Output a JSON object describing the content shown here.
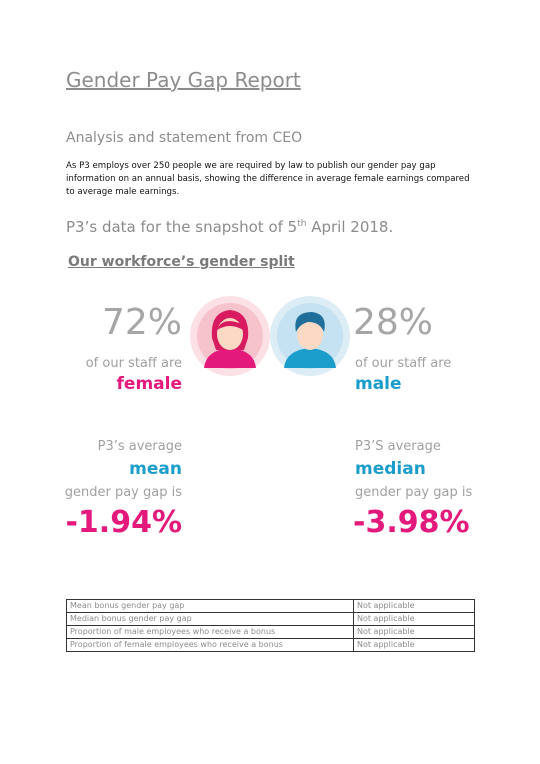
{
  "header": {
    "title": "Gender Pay Gap Report",
    "subtitle": "Analysis and statement from CEO"
  },
  "intro": "As P3 employs over 250 people we are required by law to publish our gender pay gap information on an annual basis, showing the difference in average female earnings compared to average male earnings.",
  "snapshot": {
    "before": "P3’s data for the snapshot of 5",
    "sup": "th",
    "after": " April 2018."
  },
  "section_title": "Our workforce’s gender split",
  "female": {
    "percent": "72%",
    "line": "of our staff are",
    "label": "female"
  },
  "male": {
    "percent": "28%",
    "line": "of our staff are",
    "label": "male"
  },
  "mean": {
    "line1": "P3’s average",
    "label": "mean",
    "line2": "gender pay gap is",
    "value": "-1.94%"
  },
  "median": {
    "line1": "P3’S average",
    "label": "median",
    "line2": "gender pay gap is",
    "value": "-3.98%"
  },
  "table": {
    "rows": [
      [
        "Mean bonus gender pay gap",
        "Not applicable"
      ],
      [
        "Median bonus gender pay gap",
        "Not applicable"
      ],
      [
        "Proportion of male employees who receive a bonus",
        "Not applicable"
      ],
      [
        "Proportion of female employees who receive a bonus",
        "Not applicable"
      ]
    ]
  }
}
